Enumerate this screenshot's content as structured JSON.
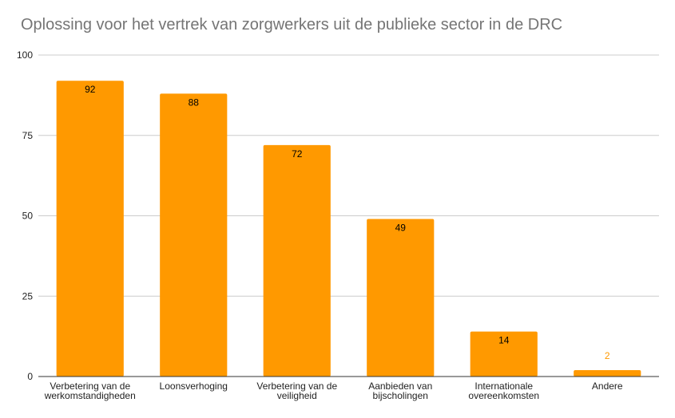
{
  "chart_data": {
    "type": "bar",
    "title": "Oplossing voor het vertrek van zorgwerkers uit de publieke sector in de DRC",
    "xlabel": "",
    "ylabel": "",
    "categories": [
      [
        "Verbetering van de",
        "werkomstandigheden"
      ],
      [
        "Loonsverhoging"
      ],
      [
        "Verbetering van de",
        "veiligheid"
      ],
      [
        "Aanbieden van",
        "bijscholingen"
      ],
      [
        "Internationale",
        "overeenkomsten"
      ],
      [
        "Andere"
      ]
    ],
    "values": [
      92,
      88,
      72,
      49,
      14,
      2
    ],
    "ylim": [
      0,
      100
    ],
    "yticks": [
      0,
      25,
      50,
      75,
      100
    ],
    "grid": true,
    "legend": "none",
    "colors": {
      "bar": "#ff9900",
      "grid": "#cccccc",
      "axis": "#333333",
      "label_inside": "#000000",
      "label_outside": "#ff9900"
    }
  }
}
